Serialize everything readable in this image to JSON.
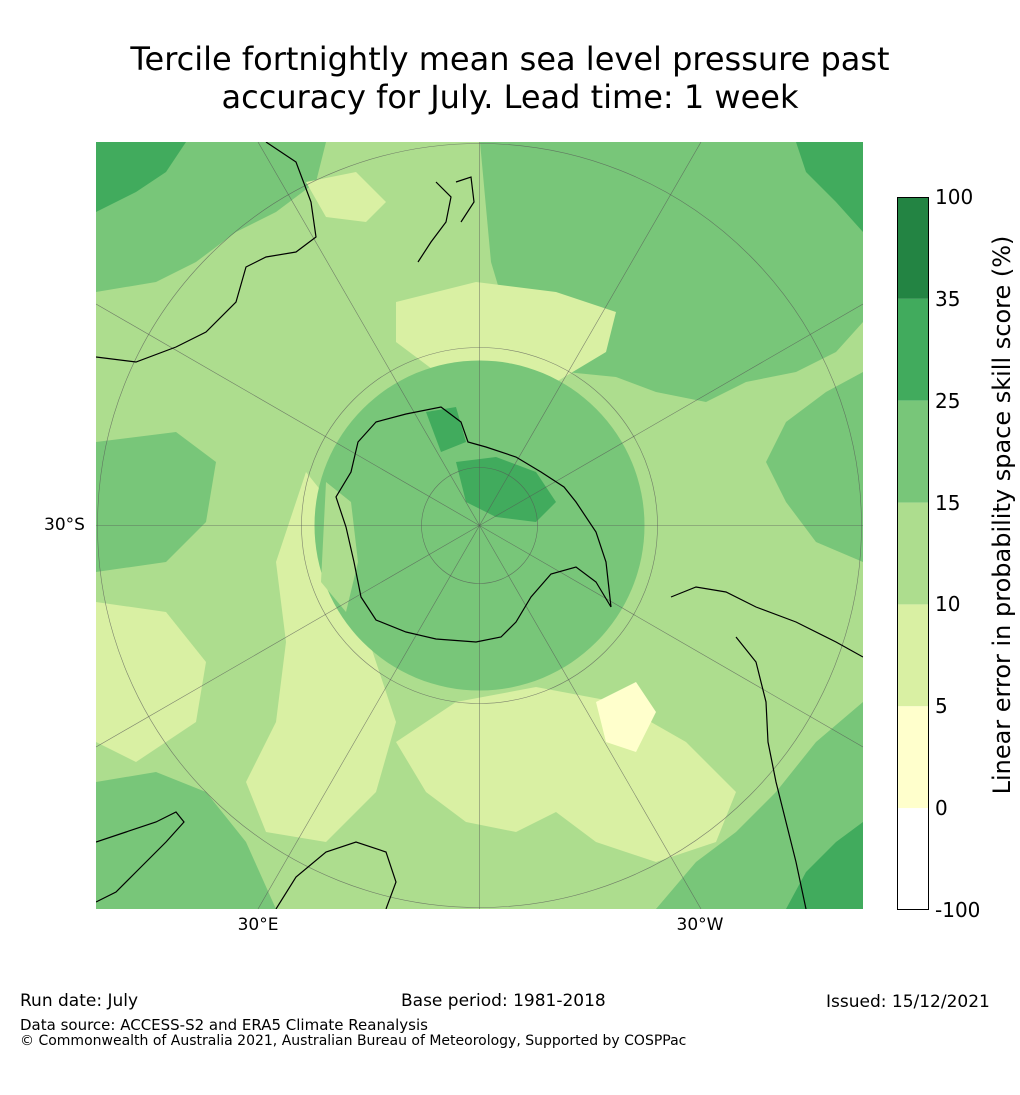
{
  "title": {
    "line1": "Tercile fortnightly mean sea level pressure past",
    "line2": "accuracy for July. Lead time: 1 week"
  },
  "map": {
    "projection": "south-polar-stereographic",
    "lat_label": "30°S",
    "lon_labels": [
      "30°E",
      "30°W"
    ],
    "ocean_base_color": "#addd8e",
    "land_outline_color": "#000000"
  },
  "colorbar": {
    "label": "Linear error in probability space skill score (%)",
    "ticks": [
      "100",
      "35",
      "25",
      "15",
      "10",
      "5",
      "0",
      "-100"
    ],
    "bins": [
      {
        "from": 35,
        "to": 100,
        "color": "#238443"
      },
      {
        "from": 25,
        "to": 35,
        "color": "#41ab5d"
      },
      {
        "from": 15,
        "to": 25,
        "color": "#78c679"
      },
      {
        "from": 10,
        "to": 15,
        "color": "#addd8e"
      },
      {
        "from": 5,
        "to": 10,
        "color": "#d9f0a3"
      },
      {
        "from": 0,
        "to": 5,
        "color": "#ffffcc"
      },
      {
        "from": -100,
        "to": 0,
        "color": "#ffffff"
      }
    ]
  },
  "footer": {
    "run_date": "Run date: July",
    "base_period": "Base period: 1981-2018",
    "issued": "Issued: 15/12/2021",
    "data_source": "Data source: ACCESS-S2 and ERA5 Climate Reanalysis",
    "copyright": "© Commonwealth of Australia 2021, Australian Bureau of Meteorology, Supported by COSPPac"
  }
}
